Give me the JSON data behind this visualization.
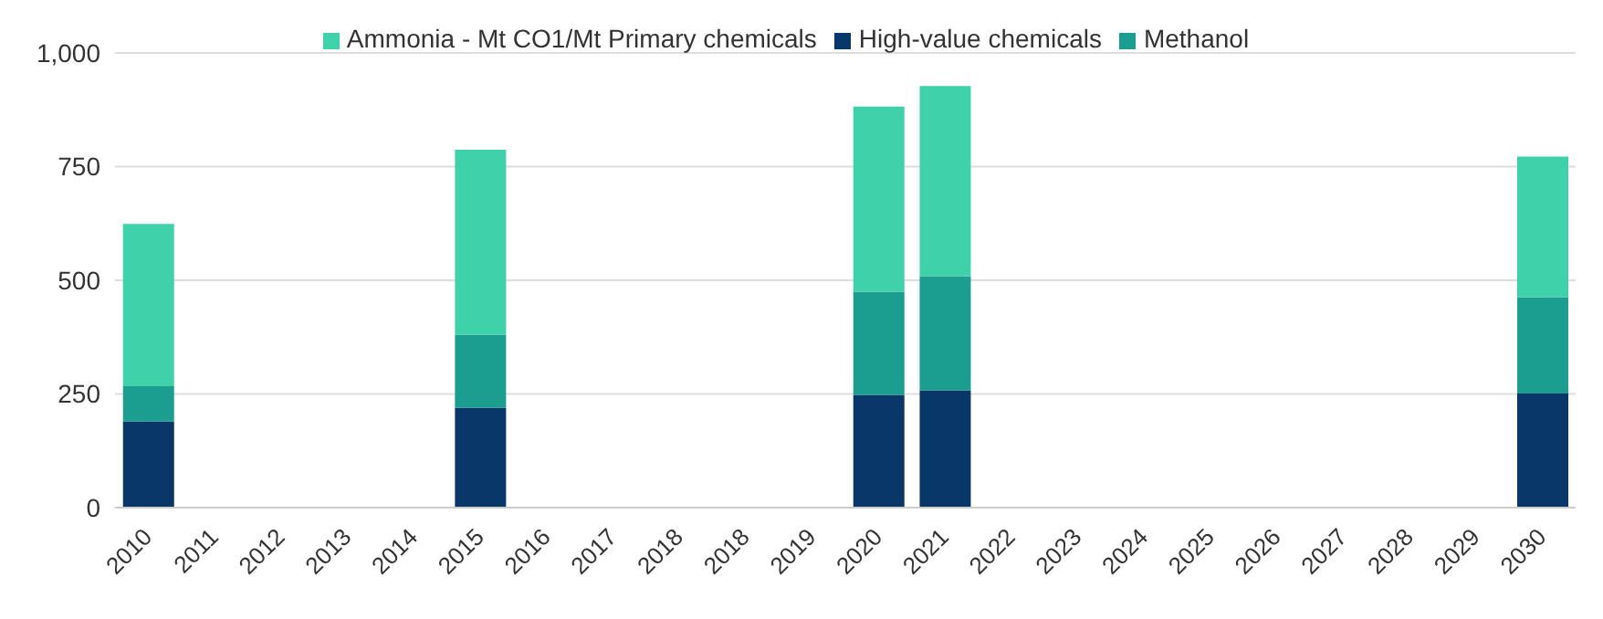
{
  "chart_data": {
    "type": "bar",
    "stacked": true,
    "categories": [
      "2010",
      "2011",
      "2012",
      "2013",
      "2014",
      "2015",
      "2016",
      "2017",
      "2018",
      "2018",
      "2019",
      "2020",
      "2021",
      "2022",
      "2023",
      "2024",
      "2025",
      "2026",
      "2027",
      "2028",
      "2029",
      "2030"
    ],
    "series": [
      {
        "name": "High-value chemicals",
        "color": "#0a3769",
        "values": [
          190,
          null,
          null,
          null,
          null,
          220,
          null,
          null,
          null,
          null,
          null,
          248,
          258,
          null,
          null,
          null,
          null,
          null,
          null,
          null,
          null,
          251
        ]
      },
      {
        "name": "Methanol",
        "color": "#1b9e8f",
        "values": [
          77,
          null,
          null,
          null,
          null,
          160,
          null,
          null,
          null,
          null,
          null,
          227,
          251,
          null,
          null,
          null,
          null,
          null,
          null,
          null,
          null,
          212
        ]
      },
      {
        "name": "Ammonia  - Mt CO1/Mt Primary chemicals",
        "color": "#3ed1aa",
        "values": [
          357,
          null,
          null,
          null,
          null,
          407,
          null,
          null,
          null,
          null,
          null,
          407,
          418,
          null,
          null,
          null,
          null,
          null,
          null,
          null,
          null,
          309
        ]
      }
    ],
    "ylim": [
      0,
      1000
    ],
    "yticks": [
      0,
      250,
      500,
      750,
      {
        "value": 1000,
        "label": "1,000"
      }
    ],
    "grid": "y",
    "legend": "top"
  }
}
